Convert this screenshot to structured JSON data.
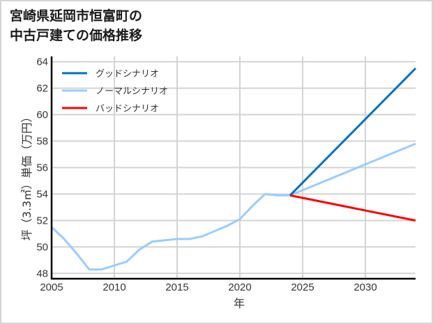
{
  "title": {
    "line1": "宮崎県延岡市恒富町の",
    "line2": "中古戸建ての価格推移"
  },
  "colors": {
    "good": "#0070c0",
    "normal": "#99ccff",
    "bad": "#ff0000",
    "grid": "#d3d3d3",
    "axis": "#000000",
    "border": "#d4d4d4"
  },
  "chart_data": {
    "type": "line",
    "title": "宮崎県延岡市恒富町の中古戸建ての価格推移",
    "xlabel": "年",
    "ylabel": "坪（3.3㎡）単価（万円）",
    "xlim": [
      2005,
      2034
    ],
    "ylim": [
      47.6,
      64.4
    ],
    "xticks": [
      2005,
      2010,
      2015,
      2020,
      2025,
      2030
    ],
    "yticks": [
      48,
      50,
      52,
      54,
      56,
      58,
      60,
      62,
      64
    ],
    "grid": true,
    "legend_position": "upper left",
    "series": [
      {
        "name": "グッドシナリオ",
        "color": "#0070c0",
        "x": [
          2024,
          2034
        ],
        "y": [
          53.9,
          63.5
        ]
      },
      {
        "name": "ノーマルシナリオ",
        "color": "#99ccff",
        "x": [
          2005,
          2006,
          2007,
          2008,
          2009,
          2010,
          2011,
          2012,
          2013,
          2014,
          2015,
          2016,
          2017,
          2018,
          2019,
          2020,
          2021,
          2022,
          2023,
          2024,
          2034
        ],
        "y": [
          51.5,
          50.6,
          49.5,
          48.3,
          48.3,
          48.6,
          48.9,
          49.8,
          50.4,
          50.5,
          50.6,
          50.6,
          50.8,
          51.2,
          51.6,
          52.1,
          53.1,
          54.0,
          53.9,
          53.9,
          57.8
        ]
      },
      {
        "name": "バッドシナリオ",
        "color": "#ff0000",
        "x": [
          2024,
          2034
        ],
        "y": [
          53.9,
          52.0
        ]
      }
    ]
  }
}
